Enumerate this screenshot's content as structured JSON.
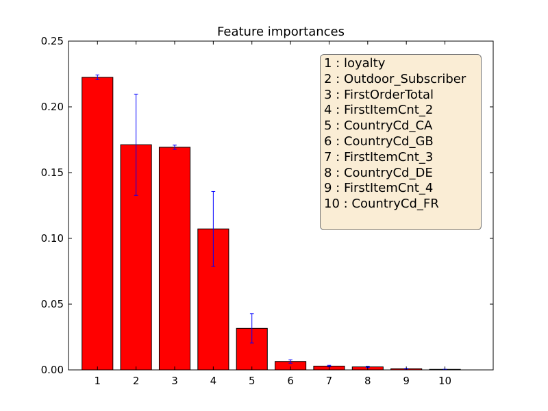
{
  "chart_data": {
    "type": "bar",
    "title": "Feature importances",
    "xlabel": "",
    "ylabel": "",
    "categories": [
      "1",
      "2",
      "3",
      "4",
      "5",
      "6",
      "7",
      "8",
      "9",
      "10"
    ],
    "values": [
      0.2225,
      0.1712,
      0.1693,
      0.1072,
      0.0316,
      0.0064,
      0.0029,
      0.0023,
      0.0009,
      0.0004
    ],
    "errors": [
      0.0018,
      0.0385,
      0.0016,
      0.0285,
      0.0112,
      0.0013,
      0.0006,
      0.0005,
      0.0002,
      0.0001
    ],
    "ylim": [
      0,
      0.25
    ],
    "yticks": [
      "0.00",
      "0.05",
      "0.10",
      "0.15",
      "0.20",
      "0.25"
    ],
    "bar_color": "#ff0000",
    "error_color": "#0000ff",
    "grid": false,
    "legend_position": "top-right",
    "legend": [
      "1 : loyalty",
      "2 : Outdoor_Subscriber",
      "3 : FirstOrderTotal",
      "4 : FirstItemCnt_2",
      "5 : CountryCd_CA",
      "6 : CountryCd_GB",
      "7 : FirstItemCnt_3",
      "8 : CountryCd_DE",
      "9 : FirstItemCnt_4",
      "10 : CountryCd_FR"
    ]
  }
}
